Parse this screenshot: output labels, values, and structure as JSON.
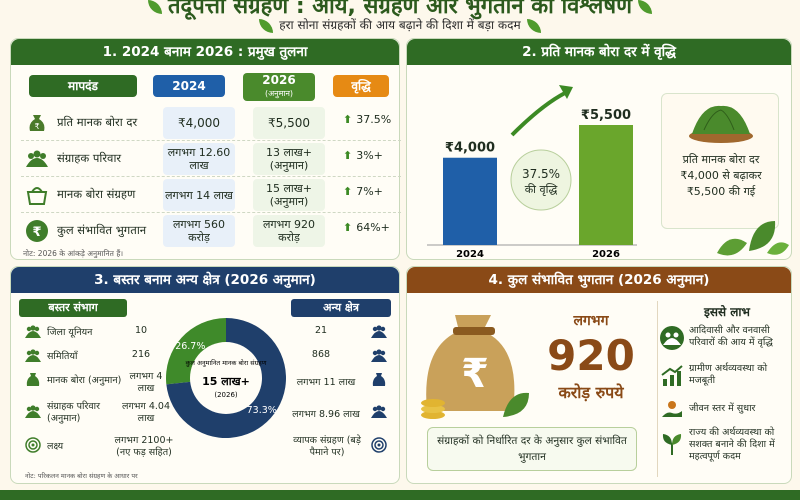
{
  "header": {
    "title": "तेंदूपत्ता संग्रहण : आय, संग्रहण और भुगतान का विश्लेषण",
    "subtitle": "हरा सोना संग्रहकों की आय बढ़ाने की दिशा में बड़ा कदम"
  },
  "panel1": {
    "heading": "1. 2024 बनाम 2026 : प्रमुख तुलना",
    "col_param": "मापदंड",
    "col_2024": "2024",
    "col_2026": "2026",
    "col_2026_sub": "(अनुमान)",
    "col_growth": "वृद्धि",
    "rows": [
      {
        "label": "प्रति मानक बोरा दर",
        "v2024": "₹4,000",
        "v2026": "₹5,500",
        "growth": "37.5%",
        "icon": "money-bag-icon"
      },
      {
        "label": "संग्राहक परिवार",
        "v2024": "लगभग 12.60 लाख",
        "v2026": "13 लाख+ (अनुमान)",
        "growth": "3%+",
        "icon": "people-icon"
      },
      {
        "label": "मानक बोरा संग्रहण",
        "v2024": "लगभग 14 लाख",
        "v2026": "15 लाख+ (अनुमान)",
        "growth": "7%+",
        "icon": "basket-icon"
      },
      {
        "label": "कुल संभावित भुगतान",
        "v2024": "लगभग 560 करोड़",
        "v2026": "लगभग 920 करोड़",
        "growth": "64%+",
        "icon": "rupee-icon"
      }
    ],
    "note": "नोट: 2026 के आंकड़े अनुमानित हैं।"
  },
  "panel2": {
    "heading": "2. प्रति मानक बोरा दर में वृद्धि",
    "bar1_label": "₹4,000",
    "bar2_label": "₹5,500",
    "x1": "2024",
    "x2": "2026",
    "growth_pct": "37.5%",
    "growth_text": "की वृद्धि",
    "side_text": "प्रति मानक बोरा दर ₹4,000 से बढ़ाकर ₹5,500 की गई"
  },
  "panel3": {
    "heading": "3. बस्तर बनाम अन्य क्षेत्र (2026 अनुमान)",
    "left_tag": "बस्तर संभाग",
    "right_tag": "अन्य क्षेत्र",
    "rows": [
      {
        "label": "जिला यूनियन",
        "bastar": "10",
        "other": "21"
      },
      {
        "label": "समितियाँ",
        "bastar": "216",
        "other": "868"
      },
      {
        "label": "मानक बोरा (अनुमान)",
        "bastar": "लगभग 4 लाख",
        "other": "लगभग 11 लाख"
      },
      {
        "label": "संग्राहक परिवार (अनुमान)",
        "bastar": "लगभग 4.04 लाख",
        "other": "लगभग 8.96 लाख"
      },
      {
        "label": "लक्ष्य",
        "bastar": "लगभग 2100+ (नए फड़ सहित)",
        "other": "व्यापक संग्रहण (बड़े पैमाने पर)"
      }
    ],
    "donut_center_1": "कुल अनुमानित मानक बोरा संग्रहण",
    "donut_center_2": "15 लाख+",
    "donut_center_3": "(2026)",
    "pct_bastar": "26.7%",
    "pct_other": "73.3%",
    "note": "नोट: परिकलन मानक बोरा संग्रहण के आधार पर"
  },
  "panel4": {
    "heading": "4. कुल संभावित भुगतान (2026 अनुमान)",
    "approx": "लगभग",
    "amount": "920",
    "unit": "करोड़ रुपये",
    "box_text": "संग्राहकों को निर्धारित दर के अनुसार कुल संभावित भुगतान",
    "benefits_title": "इससे लाभ",
    "benefits": [
      "आदिवासी और वनवासी परिवारों की आय में वृद्धि",
      "ग्रामीण अर्थव्यवस्था को मजबूती",
      "जीवन स्तर में सुधार",
      "राज्य की अर्थव्यवस्था को सशक्त बनाने की दिशा में महत्वपूर्ण कदम"
    ]
  },
  "chart_data": [
    {
      "type": "bar",
      "title": "2. प्रति मानक बोरा दर में वृद्धि",
      "categories": [
        "2024",
        "2026"
      ],
      "values": [
        4000,
        5500
      ],
      "colors": [
        "#1f5fa8",
        "#6aa62c"
      ]
    },
    {
      "type": "pie",
      "categories": [
        "बस्तर संभाग",
        "अन्य क्षेत्र"
      ],
      "values": [
        26.7,
        73.3
      ],
      "colors": [
        "#3f8a2a",
        "#1f3f6b"
      ]
    }
  ]
}
